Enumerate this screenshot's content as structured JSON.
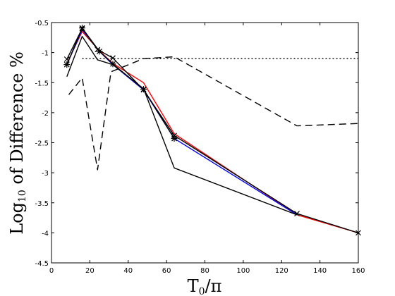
{
  "chart_data": {
    "type": "line",
    "xlim": [
      0,
      160
    ],
    "ylim": [
      -4.5,
      -0.5
    ],
    "x_ticks": [
      0,
      20,
      40,
      60,
      80,
      100,
      120,
      140,
      160
    ],
    "y_ticks": [
      -0.5,
      -1,
      -1.5,
      -2,
      -2.5,
      -3,
      -3.5,
      -4,
      -4.5
    ],
    "x_tick_labels": [
      "0",
      "20",
      "40",
      "60",
      "80",
      "100",
      "120",
      "140",
      "160"
    ],
    "y_tick_labels": [
      "-0.5",
      "-1",
      "-1.5",
      "-2",
      "-2.5",
      "-3",
      "-3.5",
      "-4",
      "-4.5"
    ],
    "xlabel": {
      "base": "T",
      "sub": "0",
      "rest": "/π"
    },
    "ylabel": {
      "base": "Log",
      "sub": "10",
      "rest": " of Difference %"
    },
    "grid": false,
    "series": [
      {
        "color": "#ff0000",
        "dash": "solid",
        "marker": "none",
        "x": [
          8,
          16,
          25,
          32,
          48,
          64,
          128,
          160
        ],
        "y": [
          -1.18,
          -0.65,
          -0.97,
          -1.18,
          -1.5,
          -2.35,
          -3.7,
          -4.0
        ]
      },
      {
        "color": "#0000ff",
        "dash": "solid",
        "marker": "none",
        "x": [
          8,
          16,
          25,
          32,
          48,
          64,
          128
        ],
        "y": [
          -1.2,
          -0.62,
          -0.98,
          -1.2,
          -1.62,
          -2.43,
          -3.7
        ]
      },
      {
        "color": "#000000",
        "dash": "solid",
        "marker": "x",
        "x": [
          8,
          16,
          24,
          32,
          48,
          64,
          128,
          160
        ],
        "y": [
          -1.11,
          -0.6,
          -0.95,
          -1.09,
          -1.62,
          -2.38,
          -3.68,
          -4.0
        ]
      },
      {
        "color": "#000000",
        "dash": "solid",
        "marker": "star",
        "x": [
          8,
          16,
          25,
          32,
          48,
          64
        ],
        "y": [
          -1.2,
          -0.59,
          -0.98,
          -1.19,
          -1.61,
          -2.43
        ]
      },
      {
        "color": "#000000",
        "dash": "solid",
        "marker": "none",
        "x": [
          8,
          16,
          24,
          32,
          48,
          64,
          128
        ],
        "y": [
          -1.4,
          -0.73,
          -1.12,
          -1.2,
          -1.6,
          -2.92,
          -3.7
        ]
      },
      {
        "color": "#000000",
        "dash": "dashed",
        "marker": "none",
        "x": [
          9,
          16,
          24,
          31,
          48,
          64,
          128,
          160
        ],
        "y": [
          -1.7,
          -1.42,
          -2.95,
          -1.32,
          -1.1,
          -1.07,
          -2.22,
          -2.18
        ]
      },
      {
        "color": "#000000",
        "dash": "dotted",
        "marker": "none",
        "x": [
          16,
          160
        ],
        "y": [
          -1.1,
          -1.1
        ]
      }
    ]
  }
}
